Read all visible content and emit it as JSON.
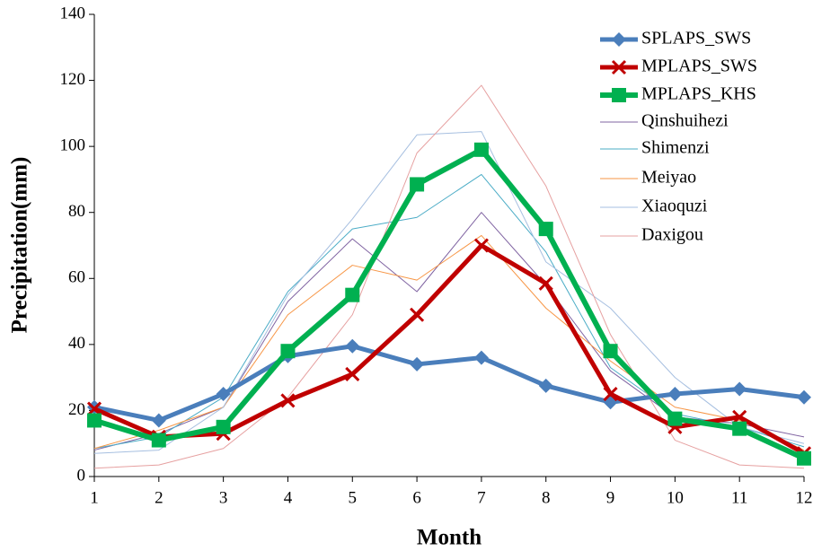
{
  "chart_data": {
    "type": "line",
    "x_label": "Month",
    "y_label": "Precipitation(mm)",
    "x": [
      1,
      2,
      3,
      4,
      5,
      6,
      7,
      8,
      9,
      10,
      11,
      12
    ],
    "xlim": [
      1,
      12
    ],
    "xticks": [
      1,
      2,
      3,
      4,
      5,
      6,
      7,
      8,
      9,
      10,
      11,
      12
    ],
    "ylim": [
      0,
      140
    ],
    "yticks": [
      0,
      20,
      40,
      60,
      80,
      100,
      120,
      140
    ],
    "legend": "upper-right",
    "series": [
      {
        "name": "SPLAPS_SWS",
        "color": "#4a7ebb",
        "marker": "diamond",
        "line_width": 5,
        "values": [
          21,
          17,
          25,
          36.5,
          39.5,
          34,
          36,
          27.5,
          22.5,
          25,
          26.5,
          24
        ]
      },
      {
        "name": "MPLAPS_SWS",
        "color": "#c00000",
        "marker": "x",
        "line_width": 5,
        "values": [
          20.5,
          12,
          13,
          23,
          31,
          49,
          70,
          58.5,
          25,
          15,
          18,
          7
        ]
      },
      {
        "name": "MPLAPS_KHS",
        "color": "#00b050",
        "marker": "square",
        "line_width": 6,
        "values": [
          17,
          11,
          15,
          38,
          55,
          88.5,
          99,
          75,
          38,
          17.5,
          14.5,
          5.5
        ]
      },
      {
        "name": "Qinshuihezi",
        "color": "#8064a2",
        "line_width": 1,
        "values": [
          8,
          13,
          21,
          53,
          72,
          56,
          80,
          58,
          32,
          18,
          16,
          12
        ]
      },
      {
        "name": "Shimenzi",
        "color": "#4bacc6",
        "line_width": 1,
        "values": [
          8.5,
          12,
          24,
          56,
          75,
          78.5,
          91.5,
          68,
          33,
          19,
          15,
          9
        ]
      },
      {
        "name": "Meiyao",
        "color": "#f79646",
        "line_width": 1,
        "values": [
          8.5,
          14,
          21,
          49,
          64,
          59.5,
          73,
          51,
          35,
          21,
          17,
          8
        ]
      },
      {
        "name": "Xiaoquzi",
        "color": "#a6bfe0",
        "line_width": 1,
        "values": [
          7,
          8,
          21,
          55,
          78,
          103.5,
          104.5,
          65,
          51,
          30,
          15,
          10
        ]
      },
      {
        "name": "Daxigou",
        "color": "#e6a0a0",
        "line_width": 1,
        "values": [
          2.5,
          3.5,
          8.5,
          24,
          49,
          98,
          118.5,
          88,
          43,
          11,
          3.5,
          2.5
        ]
      }
    ]
  }
}
